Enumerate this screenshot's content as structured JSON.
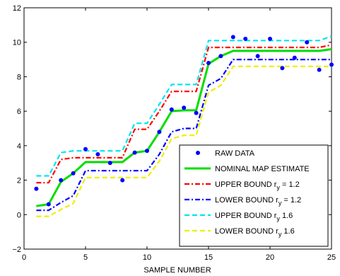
{
  "chart_data": {
    "type": "line",
    "xlabel": "SAMPLE NUMBER",
    "ylabel": "",
    "xlim": [
      0,
      25
    ],
    "ylim": [
      -2,
      12
    ],
    "xticks": [
      0,
      5,
      10,
      15,
      20,
      25
    ],
    "yticks": [
      -2,
      0,
      2,
      4,
      6,
      8,
      10,
      12
    ],
    "grid": false,
    "legend_position": "bottom-right",
    "series": [
      {
        "name": "RAW DATA",
        "style": "markers",
        "color": "#0000ff",
        "x": [
          1,
          2,
          3,
          4,
          5,
          6,
          7,
          8,
          9,
          10,
          11,
          12,
          13,
          14,
          15,
          16,
          17,
          18,
          19,
          20,
          21,
          22,
          23,
          24,
          25
        ],
        "y": [
          1.5,
          0.6,
          2.0,
          2.4,
          3.8,
          3.5,
          3.0,
          2.0,
          3.6,
          3.7,
          4.8,
          6.1,
          6.2,
          5.9,
          8.8,
          9.2,
          10.3,
          10.2,
          9.2,
          10.2,
          8.5,
          9.1,
          10.0,
          8.4,
          8.7
        ]
      },
      {
        "name": "NOMINAL MAP ESTIMATE",
        "style": "solid",
        "color": "#00dd00",
        "x": [
          1,
          2,
          3,
          4,
          5,
          6,
          7,
          8,
          9,
          10,
          11,
          12,
          13,
          14,
          15,
          16,
          17,
          18,
          19,
          20,
          21,
          22,
          23,
          24,
          25
        ],
        "y": [
          0.5,
          0.6,
          1.9,
          2.4,
          3.05,
          3.05,
          3.05,
          3.05,
          3.6,
          3.7,
          4.8,
          6.0,
          6.05,
          6.05,
          8.75,
          9.2,
          9.5,
          9.5,
          9.5,
          9.5,
          9.5,
          9.5,
          9.5,
          9.5,
          9.6
        ]
      },
      {
        "name_prefix": "UPPER BOUND r",
        "name_sub": "y",
        "name_suffix": " = 1.2",
        "style": "dashdot",
        "color": "#ff0000",
        "x": [
          1,
          2,
          3,
          4,
          5,
          6,
          7,
          8,
          9,
          10,
          11,
          12,
          13,
          14,
          15,
          16,
          17,
          18,
          19,
          20,
          21,
          22,
          23,
          24,
          25
        ],
        "y": [
          1.85,
          1.85,
          3.2,
          3.3,
          3.3,
          3.3,
          3.3,
          3.3,
          4.95,
          4.95,
          6.0,
          7.15,
          7.15,
          7.15,
          9.7,
          9.7,
          9.7,
          9.7,
          9.7,
          9.7,
          9.7,
          9.7,
          9.7,
          9.7,
          9.85
        ]
      },
      {
        "name_prefix": "LOWER BOUND r",
        "name_sub": "y",
        "name_suffix": " = 1.2",
        "style": "dashdot",
        "color": "#0000ff",
        "x": [
          1,
          2,
          3,
          4,
          5,
          6,
          7,
          8,
          9,
          10,
          11,
          12,
          13,
          14,
          15,
          16,
          17,
          18,
          19,
          20,
          21,
          22,
          23,
          24,
          25
        ],
        "y": [
          0.25,
          0.25,
          0.7,
          1.1,
          2.55,
          2.55,
          2.55,
          2.55,
          2.55,
          2.55,
          3.5,
          4.8,
          5.0,
          5.0,
          7.5,
          7.9,
          9.0,
          9.0,
          9.0,
          9.0,
          9.0,
          9.0,
          9.0,
          9.0,
          9.0
        ]
      },
      {
        "name_prefix": "UPPER BOUND r",
        "name_sub": "y",
        "name_suffix": " 1.6",
        "style": "dashed",
        "color": "#00e5ee",
        "x": [
          1,
          2,
          3,
          4,
          5,
          6,
          7,
          8,
          9,
          10,
          11,
          12,
          13,
          14,
          15,
          16,
          17,
          18,
          19,
          20,
          21,
          22,
          23,
          24,
          25
        ],
        "y": [
          2.25,
          2.25,
          3.6,
          3.7,
          3.7,
          3.7,
          3.7,
          3.7,
          5.3,
          5.3,
          6.4,
          7.55,
          7.55,
          7.55,
          10.1,
          10.1,
          10.1,
          10.1,
          10.1,
          10.1,
          10.1,
          10.1,
          10.1,
          10.1,
          10.35
        ]
      },
      {
        "name_prefix": "LOWER BOUND r",
        "name_sub": "y",
        "name_suffix": " 1.6",
        "style": "dashed",
        "color": "#eeee00",
        "x": [
          1,
          2,
          3,
          4,
          5,
          6,
          7,
          8,
          9,
          10,
          11,
          12,
          13,
          14,
          15,
          16,
          17,
          18,
          19,
          20,
          21,
          22,
          23,
          24,
          25
        ],
        "y": [
          -0.1,
          -0.1,
          0.3,
          0.65,
          2.15,
          2.15,
          2.15,
          2.15,
          2.15,
          2.15,
          3.1,
          4.4,
          4.6,
          4.6,
          7.1,
          7.5,
          8.6,
          8.6,
          8.6,
          8.6,
          8.6,
          8.6,
          8.6,
          8.6,
          8.6
        ]
      }
    ]
  }
}
